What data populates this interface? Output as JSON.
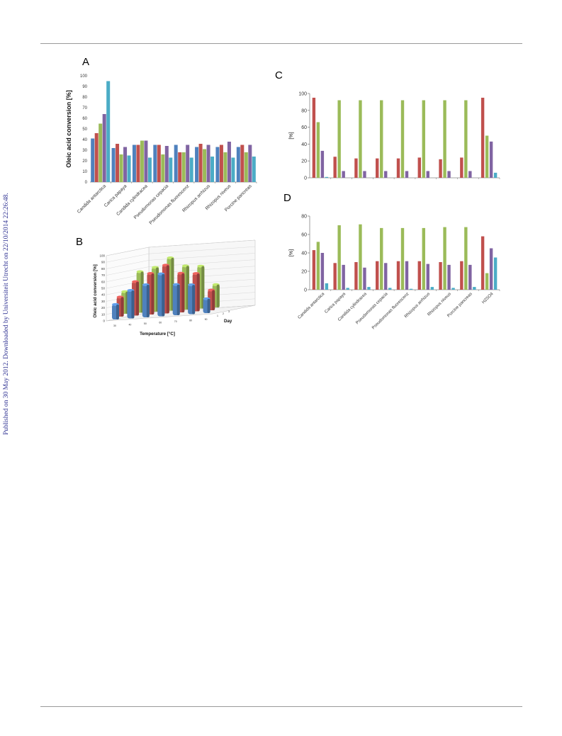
{
  "side_note": "Published on 30 May 2012. Downloaded by Universiteit Utrecht on 22/10/2014 22:26:48.",
  "colors": {
    "red": "#c0504d",
    "green": "#9bbb59",
    "purple": "#8064a2",
    "blue": "#4f81bd",
    "cyan": "#4bacc6",
    "axis": "#868686"
  },
  "chart_data": [
    {
      "label": "A",
      "type": "bar",
      "ylabel": "Oleic acid conversion [%]",
      "ylim": [
        0,
        100
      ],
      "yticks": [
        "0",
        "10",
        "20",
        "30",
        "40",
        "50",
        "60",
        "70",
        "80",
        "90",
        "100"
      ],
      "categories": [
        "Candida antarctica",
        "Carica papaya",
        "Candida cylindracea",
        "Pseudomonas cepacia",
        "Pseudomonas fluorescenz",
        "Rhizopus arrhizus",
        "Rhizopus niveus",
        "Porcine pancreas"
      ],
      "series_colors": [
        "blue",
        "red",
        "green",
        "purple",
        "cyan"
      ],
      "series": [
        {
          "values": [
            41,
            32,
            35,
            35,
            35,
            33,
            33,
            33
          ]
        },
        {
          "values": [
            46,
            36,
            35,
            35,
            28,
            36,
            35,
            35
          ]
        },
        {
          "values": [
            55,
            26,
            39,
            26,
            28,
            31,
            28,
            28
          ]
        },
        {
          "values": [
            64,
            33,
            39,
            34,
            35,
            35,
            38,
            35
          ]
        },
        {
          "values": [
            95,
            25,
            23,
            23,
            23,
            24,
            23,
            24
          ]
        }
      ]
    },
    {
      "label": "B",
      "type": "bar",
      "subtype": "3d",
      "ylabel": "Oleic acid conversion [%]",
      "xlabel": "Temperature [°C]",
      "zlabel": "Day",
      "ylim": [
        0,
        100
      ],
      "yticks": [
        "0",
        "10",
        "20",
        "30",
        "40",
        "50",
        "60",
        "70",
        "80",
        "90",
        "100"
      ],
      "categories": [
        "30",
        "40",
        "50",
        "60",
        "70",
        "80",
        "90"
      ],
      "depth_labels": [
        "1",
        "2",
        "3"
      ],
      "series_colors": [
        "blue",
        "red",
        "green"
      ],
      "series": [
        {
          "values": [
            23,
            43,
            50,
            65,
            47,
            45,
            22
          ]
        },
        {
          "values": [
            30,
            52,
            63,
            74,
            60,
            58,
            31
          ]
        },
        {
          "values": [
            34,
            63,
            68,
            81,
            67,
            65,
            35
          ]
        }
      ]
    },
    {
      "label": "C",
      "type": "bar",
      "ylabel": "[%]",
      "ylim": [
        0,
        100
      ],
      "yticks": [
        "0",
        "20",
        "40",
        "60",
        "80",
        "100"
      ],
      "categories": [
        "Candida antarctica",
        "Carica papaya",
        "Candida cylindracea",
        "Pseudomonas cepacia",
        "Pseudomonas fluorescenz",
        "Rhizopus arrhizus",
        "Rhizopus niveus",
        "Porcine pancreas",
        "H2SO4"
      ],
      "series_colors": [
        "red",
        "green",
        "purple",
        "cyan"
      ],
      "series": [
        {
          "values": [
            95,
            25,
            23,
            23,
            23,
            24,
            22,
            24,
            95
          ]
        },
        {
          "values": [
            66,
            92,
            92,
            92,
            92,
            92,
            92,
            92,
            50
          ]
        },
        {
          "values": [
            32,
            8,
            8,
            8,
            8,
            8,
            8,
            8,
            43
          ]
        },
        {
          "values": [
            1,
            0,
            0,
            0,
            0,
            0,
            0,
            0,
            6
          ]
        }
      ]
    },
    {
      "label": "D",
      "type": "bar",
      "ylabel": "[%]",
      "ylim": [
        0,
        80
      ],
      "yticks": [
        "0",
        "20",
        "40",
        "60",
        "80"
      ],
      "categories": [
        "Candida antarctica",
        "Carica papaya",
        "Candida cylindracea",
        "Pseudomonas cepacia",
        "Pseudomonas fluorescenz",
        "Rhizopus arrhizus",
        "Rhizopus niveus",
        "Porcine pancreas",
        "H2SO4"
      ],
      "series_colors": [
        "red",
        "green",
        "purple",
        "cyan"
      ],
      "series": [
        {
          "values": [
            43,
            29,
            30,
            31,
            31,
            31,
            30,
            31,
            58
          ]
        },
        {
          "values": [
            52,
            70,
            71,
            67,
            67,
            67,
            68,
            68,
            18
          ]
        },
        {
          "values": [
            40,
            27,
            24,
            29,
            31,
            28,
            27,
            27,
            45
          ]
        },
        {
          "values": [
            7,
            2,
            3,
            2,
            1,
            3,
            2,
            3,
            35
          ]
        }
      ]
    }
  ]
}
